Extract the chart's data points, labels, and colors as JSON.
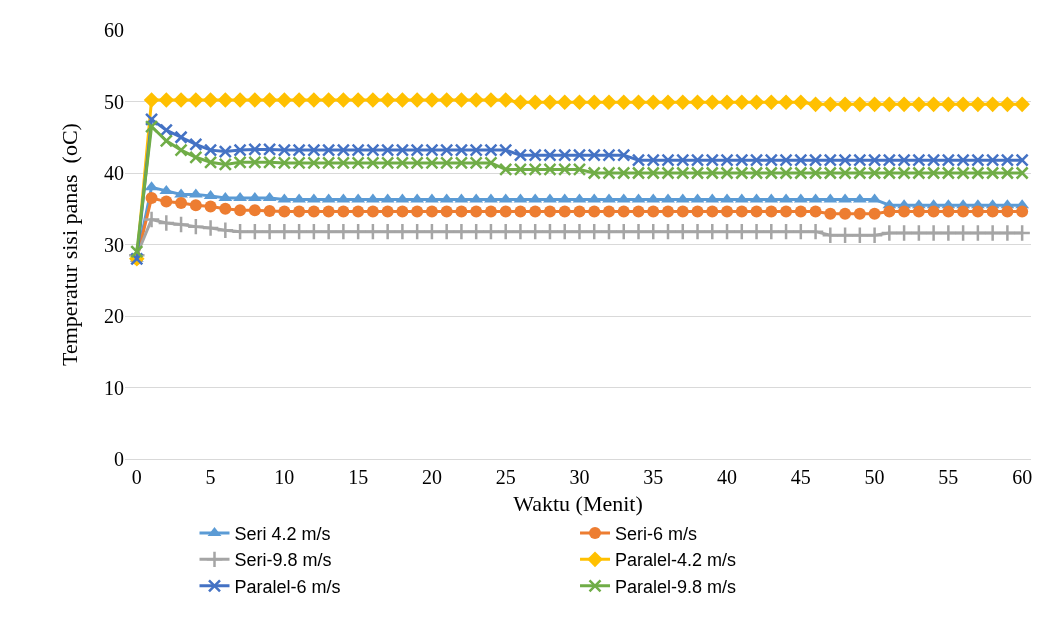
{
  "chart_data": {
    "type": "line",
    "xlabel": "Waktu (Menit)",
    "ylabel": "Temperatur sisi panas  (oC)",
    "x": [
      0,
      1,
      2,
      3,
      4,
      5,
      6,
      7,
      8,
      9,
      10,
      11,
      12,
      13,
      14,
      15,
      16,
      17,
      18,
      19,
      20,
      21,
      22,
      23,
      24,
      25,
      26,
      27,
      28,
      29,
      30,
      31,
      32,
      33,
      34,
      35,
      36,
      37,
      38,
      39,
      40,
      41,
      42,
      43,
      44,
      45,
      46,
      47,
      48,
      49,
      50,
      51,
      52,
      53,
      54,
      55,
      56,
      57,
      58,
      59,
      60
    ],
    "xlim": [
      -0.8,
      60.6
    ],
    "xticks": [
      0,
      5,
      10,
      15,
      20,
      25,
      30,
      35,
      40,
      45,
      50,
      55,
      60
    ],
    "ylim": [
      0,
      60
    ],
    "yticks": [
      0,
      10,
      20,
      30,
      40,
      50,
      60
    ],
    "grid": "y",
    "legend": "bottom",
    "line_style": "solid",
    "series": [
      {
        "name": "Seri 4.2 m/s",
        "color": "#5b9bd5",
        "marker": "triangle",
        "values": [
          28,
          38,
          37.5,
          37,
          37,
          36.8,
          36.5,
          36.5,
          36.5,
          36.5,
          36.3,
          36.3,
          36.3,
          36.3,
          36.3,
          36.3,
          36.3,
          36.3,
          36.3,
          36.3,
          36.3,
          36.3,
          36.3,
          36.3,
          36.3,
          36.3,
          36.3,
          36.3,
          36.3,
          36.3,
          36.3,
          36.3,
          36.3,
          36.3,
          36.3,
          36.3,
          36.3,
          36.3,
          36.3,
          36.3,
          36.3,
          36.3,
          36.3,
          36.3,
          36.3,
          36.3,
          36.3,
          36.3,
          36.3,
          36.3,
          36.3,
          35.5,
          35.5,
          35.5,
          35.5,
          35.5,
          35.5,
          35.5,
          35.5,
          35.5,
          35.5
        ]
      },
      {
        "name": "Seri-6 m/s",
        "color": "#ed7d31",
        "marker": "circle",
        "values": [
          28,
          36.5,
          36,
          35.8,
          35.5,
          35.3,
          35,
          34.8,
          34.8,
          34.7,
          34.6,
          34.6,
          34.6,
          34.6,
          34.6,
          34.6,
          34.6,
          34.6,
          34.6,
          34.6,
          34.6,
          34.6,
          34.6,
          34.6,
          34.6,
          34.6,
          34.6,
          34.6,
          34.6,
          34.6,
          34.6,
          34.6,
          34.6,
          34.6,
          34.6,
          34.6,
          34.6,
          34.6,
          34.6,
          34.6,
          34.6,
          34.6,
          34.6,
          34.6,
          34.6,
          34.6,
          34.6,
          34.3,
          34.3,
          34.3,
          34.3,
          34.6,
          34.6,
          34.6,
          34.6,
          34.6,
          34.6,
          34.6,
          34.6,
          34.6,
          34.6
        ]
      },
      {
        "name": "Seri-9.8 m/s",
        "color": "#a5a5a5",
        "marker": "cross",
        "values": [
          28.5,
          33.5,
          33,
          32.8,
          32.5,
          32.3,
          32,
          31.8,
          31.8,
          31.8,
          31.8,
          31.8,
          31.8,
          31.8,
          31.8,
          31.8,
          31.8,
          31.8,
          31.8,
          31.8,
          31.8,
          31.8,
          31.8,
          31.8,
          31.8,
          31.8,
          31.8,
          31.8,
          31.8,
          31.8,
          31.8,
          31.8,
          31.8,
          31.8,
          31.8,
          31.8,
          31.8,
          31.8,
          31.8,
          31.8,
          31.8,
          31.8,
          31.8,
          31.8,
          31.8,
          31.8,
          31.8,
          31.3,
          31.3,
          31.3,
          31.3,
          31.6,
          31.6,
          31.6,
          31.6,
          31.6,
          31.6,
          31.6,
          31.6,
          31.6,
          31.6
        ]
      },
      {
        "name": "Paralel-4.2 m/s",
        "color": "#ffc000",
        "marker": "diamond",
        "values": [
          28,
          50.2,
          50.2,
          50.2,
          50.2,
          50.2,
          50.2,
          50.2,
          50.2,
          50.2,
          50.2,
          50.2,
          50.2,
          50.2,
          50.2,
          50.2,
          50.2,
          50.2,
          50.2,
          50.2,
          50.2,
          50.2,
          50.2,
          50.2,
          50.2,
          50.2,
          49.9,
          49.9,
          49.9,
          49.9,
          49.9,
          49.9,
          49.9,
          49.9,
          49.9,
          49.9,
          49.9,
          49.9,
          49.9,
          49.9,
          49.9,
          49.9,
          49.9,
          49.9,
          49.9,
          49.9,
          49.6,
          49.6,
          49.6,
          49.6,
          49.6,
          49.6,
          49.6,
          49.6,
          49.6,
          49.6,
          49.6,
          49.6,
          49.6,
          49.6,
          49.6
        ]
      },
      {
        "name": "Paralel-6 m/s",
        "color": "#4472c4",
        "marker": "x",
        "values": [
          28,
          47.5,
          46,
          45,
          44,
          43.2,
          43,
          43.2,
          43.3,
          43.3,
          43.2,
          43.2,
          43.2,
          43.2,
          43.2,
          43.2,
          43.2,
          43.2,
          43.2,
          43.2,
          43.2,
          43.2,
          43.2,
          43.2,
          43.2,
          43.2,
          42.5,
          42.5,
          42.5,
          42.5,
          42.5,
          42.5,
          42.5,
          42.5,
          41.8,
          41.8,
          41.8,
          41.8,
          41.8,
          41.8,
          41.8,
          41.8,
          41.8,
          41.8,
          41.8,
          41.8,
          41.8,
          41.8,
          41.8,
          41.8,
          41.8,
          41.8,
          41.8,
          41.8,
          41.8,
          41.8,
          41.8,
          41.8,
          41.8,
          41.8,
          41.8
        ]
      },
      {
        "name": "Paralel-9.8 m/s",
        "color": "#70ad47",
        "marker": "x",
        "values": [
          29,
          46.5,
          44.5,
          43.2,
          42.2,
          41.5,
          41.2,
          41.5,
          41.5,
          41.5,
          41.4,
          41.4,
          41.4,
          41.4,
          41.4,
          41.4,
          41.4,
          41.4,
          41.4,
          41.4,
          41.4,
          41.4,
          41.4,
          41.4,
          41.4,
          40.5,
          40.5,
          40.5,
          40.5,
          40.5,
          40.5,
          40,
          40,
          40,
          40,
          40,
          40,
          40,
          40,
          40,
          40,
          40,
          40,
          40,
          40,
          40,
          40,
          40,
          40,
          40,
          40,
          40,
          40,
          40,
          40,
          40,
          40,
          40,
          40,
          40,
          40
        ]
      }
    ]
  }
}
